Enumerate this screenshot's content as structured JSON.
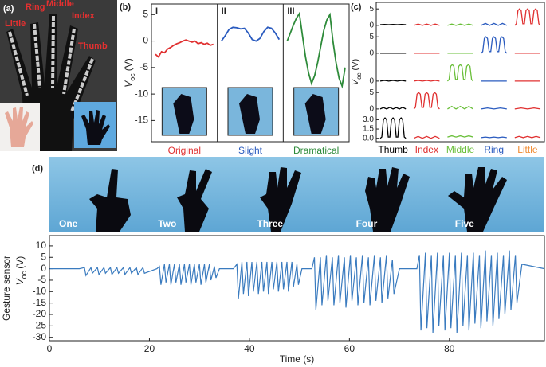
{
  "panel_labels": [
    "(a)",
    "(b)",
    "(c)",
    "(d)"
  ],
  "photo": {
    "labels": [
      "Little",
      "Ring",
      "Middle",
      "Index",
      "Thumb"
    ]
  },
  "chart_data": [
    {
      "type": "line",
      "ylabel": {
        "symbol": "V",
        "subscript": "oc",
        "unit": "(V)"
      },
      "ylim": [
        -19,
        7
      ],
      "yticks": [
        -15,
        -10,
        -5,
        0,
        5
      ],
      "series": [
        {
          "name": "Original",
          "label": "I",
          "color": "#e03030",
          "values": [
            -2.5,
            -3,
            -2,
            -2.2,
            -1.5,
            -1.2,
            -0.8,
            -0.5,
            -0.3,
            0,
            0.2,
            0,
            -0.2,
            0,
            -0.5,
            -0.3,
            -0.6,
            -0.4,
            -0.8,
            -0.6
          ]
        },
        {
          "name": "Slight",
          "label": "II",
          "color": "#2a5bbf",
          "values": [
            0,
            1,
            2.2,
            2.6,
            2.5,
            2.3,
            2.4,
            1.5,
            0.3,
            0,
            0.5,
            1.8,
            2.6,
            2.4,
            1.5,
            0.3
          ]
        },
        {
          "name": "Dramatical",
          "label": "III",
          "color": "#2e8b3a",
          "values": [
            0,
            1.5,
            3,
            4.3,
            5.2,
            1,
            -3,
            -6,
            -8,
            -6.5,
            -4,
            -1,
            2,
            4,
            5,
            0,
            -4,
            -7,
            -8.5,
            -5
          ]
        }
      ]
    },
    {
      "type": "line-grid",
      "ylabel": {
        "symbol": "V",
        "subscript": "oc",
        "unit": "(V)"
      },
      "columns": [
        {
          "name": "Thumb",
          "color": "#000000"
        },
        {
          "name": "Index",
          "color": "#e03030"
        },
        {
          "name": "Middle",
          "color": "#6abf3a"
        },
        {
          "name": "Ring",
          "color": "#2a5bbf"
        },
        {
          "name": "Little",
          "color": "#f08a30"
        }
      ],
      "trace_colors": [
        "#000000",
        "#e03030",
        "#6abf3a",
        "#2a5bbf",
        "#e03030"
      ],
      "rows": [
        {
          "ylim": [
            -1,
            6.5
          ],
          "yticks": [
            0,
            5
          ],
          "cells": [
            [
              0.2,
              0.3,
              0.2,
              0.3,
              0.2,
              0.3,
              0.2
            ],
            [
              0,
              0.4,
              0,
              0.4,
              0,
              0.4,
              0
            ],
            [
              0,
              0.4,
              0,
              0.4,
              0,
              0.4,
              0
            ],
            [
              0,
              0.6,
              0,
              0.6,
              0,
              0.6,
              0
            ],
            [
              0,
              0.5,
              4.5,
              5,
              4.5,
              0.5,
              0.5,
              4.5,
              5,
              4.5,
              0.5,
              0.5,
              4.5,
              5,
              4.5,
              0.5,
              0
            ]
          ]
        },
        {
          "ylim": [
            -1,
            6.5
          ],
          "yticks": [
            0,
            5
          ],
          "cells": [
            [
              0,
              0,
              0,
              0,
              0,
              0,
              0
            ],
            [
              0,
              0,
              0,
              0,
              0,
              0,
              0
            ],
            [
              0,
              0,
              0,
              0,
              0,
              0,
              0
            ],
            [
              0,
              0.5,
              4.5,
              5,
              4.5,
              0.5,
              0.5,
              4.5,
              5,
              4.5,
              0.5,
              0.5,
              4.5,
              5,
              4.5,
              0.5,
              0
            ],
            [
              0,
              0,
              0,
              0,
              0,
              0,
              0
            ]
          ]
        },
        {
          "ylim": [
            -1,
            6.5
          ],
          "yticks": [
            0
          ],
          "cells": [
            [
              0,
              0.2,
              0,
              0.2,
              0,
              0.2,
              0
            ],
            [
              0,
              0.2,
              0,
              0.2,
              0,
              0.2,
              0
            ],
            [
              0,
              0.5,
              4.5,
              5,
              4.5,
              0.5,
              0.5,
              4.5,
              5,
              4.5,
              0.5,
              0.5,
              4.5,
              5,
              4.5,
              0.5,
              0
            ],
            [
              0,
              0,
              0,
              0,
              0,
              0,
              0
            ],
            [
              0,
              0,
              0,
              0,
              0,
              0,
              0
            ]
          ]
        },
        {
          "ylim": [
            -1,
            6.5
          ],
          "yticks": [
            0,
            5
          ],
          "cells": [
            [
              0,
              0.4,
              0,
              0.5,
              0,
              0.4,
              0,
              0.5,
              0
            ],
            [
              0,
              0.5,
              4.5,
              5,
              4.5,
              0.5,
              0.5,
              4.5,
              5,
              4.5,
              0.5,
              0.5,
              4.5,
              5,
              4.5,
              0.5,
              0
            ],
            [
              0,
              0.8,
              0,
              0.8,
              0,
              0.8,
              0
            ],
            [
              0,
              0.3,
              0,
              0.3,
              0
            ],
            [
              0,
              0.3,
              0,
              0.3,
              0
            ]
          ]
        },
        {
          "ylim": [
            -0.3,
            3.7
          ],
          "yticks": [
            {
              "value": 0,
              "label": "0.0"
            },
            {
              "value": 1.5,
              "label": "1.5"
            },
            {
              "value": 3,
              "label": "3.0"
            }
          ],
          "cells": [
            [
              0,
              0.2,
              3,
              3.3,
              3,
              0.2,
              0.2,
              3,
              3.3,
              3,
              0.2,
              0.2,
              3,
              3.3,
              3,
              0.2,
              0
            ],
            [
              0,
              0.3,
              0,
              0.3,
              0,
              0.3,
              0
            ],
            [
              0.2,
              0.4,
              0.2,
              0.4,
              0.2,
              0.4,
              0.2
            ],
            [
              0.1,
              0.2,
              0.1,
              0.2,
              0.1,
              0.2,
              0.1
            ],
            [
              0.1,
              0.3,
              0.1,
              0.3,
              0.1,
              0.3,
              0.1
            ]
          ]
        }
      ]
    },
    {
      "type": "line",
      "annotations": [
        "One",
        "Two",
        "Three",
        "Four",
        "Five"
      ],
      "ylabel_title": "Gesture sensor",
      "ylabel": {
        "symbol": "V",
        "subscript": "oc",
        "unit": "(V)"
      },
      "xlabel": "Time (s)",
      "xlim": [
        0,
        99
      ],
      "xticks": [
        0,
        20,
        40,
        60,
        80
      ],
      "ylim": [
        -31.5,
        14.5
      ],
      "yticks": [
        10,
        5,
        0,
        -5,
        -10,
        -15,
        -20,
        -25,
        -30
      ],
      "color": "#3a7bbf",
      "x": [
        0,
        6,
        7,
        7.3,
        8.3,
        8.6,
        9.6,
        9.9,
        10.9,
        11.2,
        12.2,
        12.5,
        13.5,
        13.8,
        14.8,
        15.1,
        16.1,
        16.4,
        17.4,
        17.7,
        18.7,
        19,
        21.5,
        22,
        22.3,
        23,
        23.3,
        24,
        24.3,
        25,
        25.3,
        26,
        26.3,
        27,
        27.3,
        28,
        28.3,
        29,
        29.3,
        30,
        30.3,
        31,
        31.3,
        32,
        32.3,
        33,
        33.3,
        34,
        36.8,
        37.5,
        37.8,
        38.5,
        38.8,
        39.5,
        39.8,
        40.5,
        40.8,
        41.5,
        41.8,
        42.5,
        42.8,
        43.5,
        43.8,
        44.5,
        44.8,
        45.5,
        45.8,
        46.5,
        46.8,
        47.5,
        47.8,
        48.5,
        48.8,
        49.5,
        49.8,
        50.5,
        52.5,
        53,
        53.3,
        54.2,
        54.5,
        55.4,
        55.7,
        56.6,
        56.9,
        57.8,
        58.1,
        59,
        59.3,
        60.2,
        60.5,
        61.4,
        61.7,
        62.6,
        62.9,
        63.8,
        64.1,
        65,
        65.3,
        66.2,
        66.5,
        67.4,
        67.7,
        68.6,
        68.9,
        70,
        73.5,
        74,
        74.3,
        75.2,
        75.5,
        76.4,
        76.7,
        77.6,
        77.9,
        78.8,
        79.1,
        80,
        80.3,
        81.2,
        81.5,
        82.4,
        82.7,
        83.6,
        83.9,
        84.8,
        85.1,
        86,
        86.3,
        87.2,
        87.5,
        88.4,
        88.7,
        89.6,
        89.9,
        90.8,
        91.1,
        92,
        92.3,
        93.2,
        93.5,
        94.5,
        99
      ],
      "values": [
        0,
        0,
        0.5,
        -3,
        0.5,
        -2,
        0.5,
        -2.5,
        0.5,
        -2,
        0.5,
        -2.5,
        0.5,
        -2,
        0.5,
        -2.5,
        0.5,
        -2,
        0.5,
        -2.5,
        0.5,
        -2,
        0,
        1,
        -7,
        2,
        -6,
        2,
        -7,
        2,
        -6,
        2,
        -7,
        2,
        -6,
        2,
        -7,
        2,
        -6,
        2,
        -7,
        2,
        -6,
        2,
        -5,
        1,
        -4,
        0,
        0,
        2,
        -13,
        3,
        -11,
        3,
        -12,
        3,
        -10,
        3,
        -11,
        3,
        -10,
        3,
        -11,
        3,
        -9,
        3,
        -10,
        3,
        -9,
        3,
        -10,
        3,
        -8,
        2,
        -7,
        0,
        0,
        5,
        -18,
        5,
        -16,
        6,
        -14,
        5,
        -16,
        6,
        -15,
        5,
        -17,
        6,
        -14,
        5,
        -16,
        6,
        -15,
        5,
        -16,
        6,
        -14,
        5,
        -15,
        6,
        -13,
        4,
        -11,
        0,
        0,
        6,
        -27,
        7,
        -26,
        6,
        -28,
        7,
        -25,
        6,
        -27,
        7,
        -26,
        6,
        -28,
        7,
        -25,
        6,
        -27,
        7,
        -24,
        6,
        -26,
        8,
        -23,
        6,
        -25,
        7,
        -22,
        6,
        -20,
        8,
        -18,
        6,
        -15,
        2,
        0
      ]
    }
  ]
}
